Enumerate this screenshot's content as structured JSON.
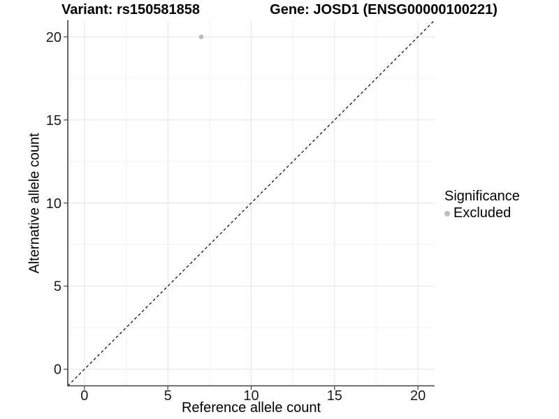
{
  "chart_data": {
    "type": "scatter",
    "title_left": "Variant: rs150581858",
    "title_right": "Gene: JOSD1 (ENSG00000100221)",
    "xlabel": "Reference allele count",
    "ylabel": "Alternative allele count",
    "xlim": [
      -1,
      21
    ],
    "ylim": [
      -1,
      21
    ],
    "x_ticks": [
      0,
      5,
      10,
      15,
      20
    ],
    "y_ticks": [
      0,
      5,
      10,
      15,
      20
    ],
    "x_minor_ticks": [
      2.5,
      7.5,
      12.5,
      17.5
    ],
    "y_minor_ticks": [
      2.5,
      7.5,
      12.5,
      17.5
    ],
    "grid": true,
    "points": [
      {
        "x": 7,
        "y": 20,
        "series": "Excluded"
      }
    ],
    "reference_line": {
      "slope": 1,
      "intercept": 0,
      "style": "dashed",
      "color": "#000000"
    },
    "legend": {
      "position": "right",
      "title": "Significance",
      "items": [
        {
          "label": "Excluded",
          "color": "#bdbdbd"
        }
      ]
    }
  },
  "colors": {
    "point_excluded": "#bdbdbd",
    "grid_major": "#e4e4e4",
    "grid_minor": "#f0f0f0",
    "axis_line": "#404040",
    "tick_mark": "#404040",
    "reference_line": "#000000"
  }
}
